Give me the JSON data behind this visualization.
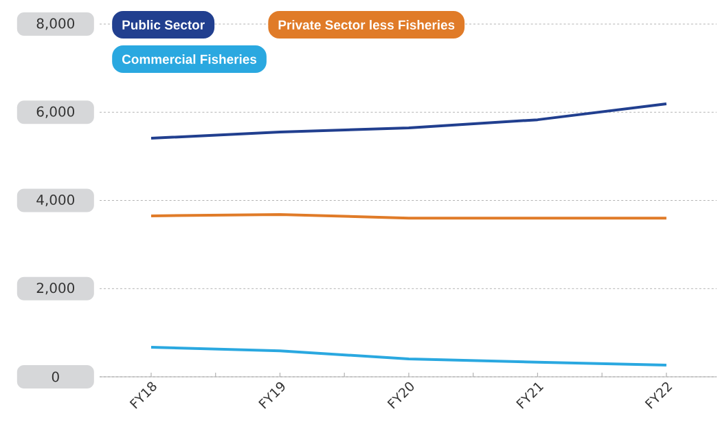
{
  "chart_data": {
    "type": "line",
    "categories": [
      "FY18",
      "FY19",
      "FY20",
      "FY21",
      "FY22"
    ],
    "series": [
      {
        "name": "Public Sector",
        "color": "#213f8f",
        "values": [
          5410,
          5550,
          5645,
          5830,
          6190
        ]
      },
      {
        "name": "Private Sector less Fisheries",
        "color": "#e07b28",
        "values": [
          3650,
          3680,
          3600,
          3600,
          3600
        ]
      },
      {
        "name": "Commercial Fisheries",
        "color": "#2aa8e0",
        "values": [
          670,
          590,
          405,
          330,
          265
        ]
      }
    ],
    "ylim": [
      0,
      8000
    ],
    "yticks": [
      {
        "value": 0,
        "label": "0"
      },
      {
        "value": 2000,
        "label": "2,000"
      },
      {
        "value": 4000,
        "label": "4,000"
      },
      {
        "value": 6000,
        "label": "6,000"
      },
      {
        "value": 8000,
        "label": "8,000"
      }
    ],
    "grid": "y",
    "legend": "top left",
    "marker": "none",
    "line_style": "solid"
  }
}
